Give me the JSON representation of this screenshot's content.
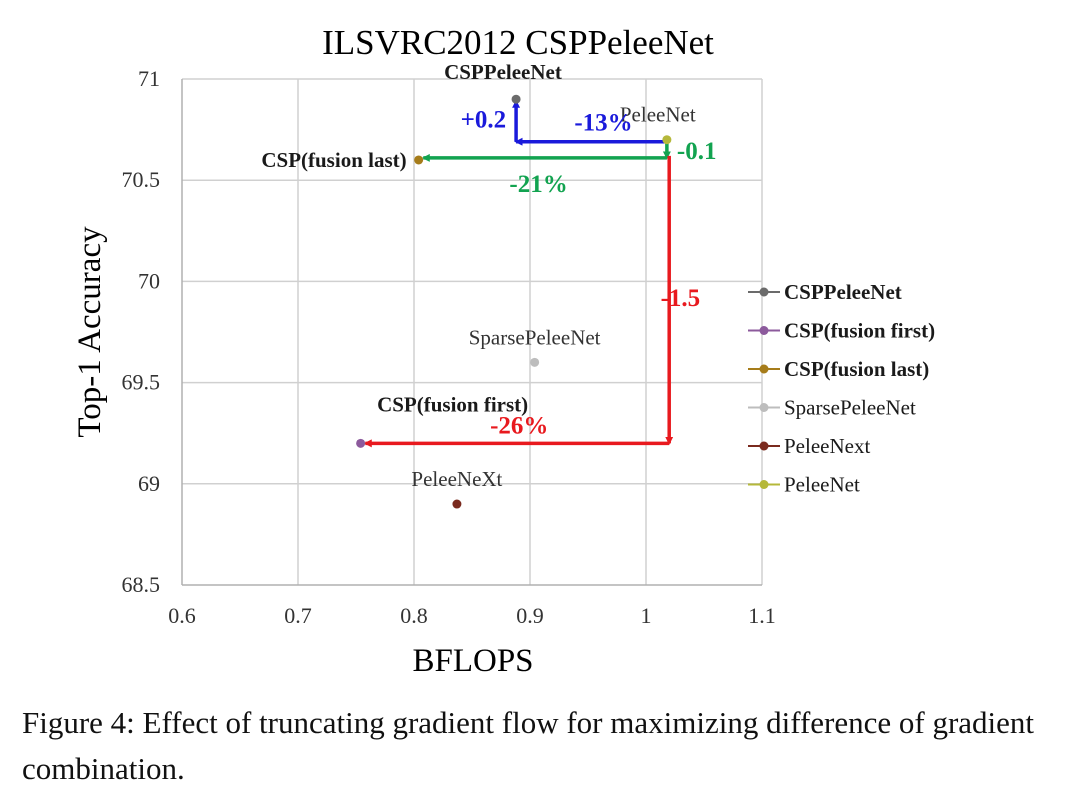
{
  "chart_data": {
    "type": "scatter",
    "title": "ILSVRC2012 CSPPeleeNet",
    "xlabel": "BFLOPS",
    "ylabel": "Top-1 Accuracy",
    "xlim": [
      0.6,
      1.1
    ],
    "ylim": [
      68.5,
      71
    ],
    "xticks": [
      0.6,
      0.7,
      0.8,
      0.9,
      1,
      1.1
    ],
    "xtick_labels": [
      "0.6",
      "0.7",
      "0.8",
      "0.9",
      "1",
      "1.1"
    ],
    "yticks": [
      68.5,
      69,
      69.5,
      70,
      70.5,
      71
    ],
    "ytick_labels": [
      "68.5",
      "69",
      "69.5",
      "70",
      "70.5",
      "71"
    ],
    "grid": true,
    "legend_position": "right",
    "series": [
      {
        "name": "CSPPeleeNet",
        "x": 0.888,
        "y": 70.9,
        "color": "#6b6b6b",
        "bold": true
      },
      {
        "name": "CSP(fusion first)",
        "x": 0.754,
        "y": 69.2,
        "color": "#8c5a9c",
        "bold": true
      },
      {
        "name": "CSP(fusion last)",
        "x": 0.804,
        "y": 70.6,
        "color": "#a67c1a",
        "bold": true
      },
      {
        "name": "SparsePeleeNet",
        "x": 0.904,
        "y": 69.6,
        "color": "#bdbdbd",
        "bold": false
      },
      {
        "name": "PeleeNext",
        "x": 0.837,
        "y": 68.9,
        "color": "#7a2a1e",
        "bold": false
      },
      {
        "name": "PeleeNet",
        "x": 1.018,
        "y": 70.7,
        "color": "#b5b83a",
        "bold": false
      }
    ],
    "point_labels": [
      {
        "text": "CSPPeleeNet",
        "x": 0.888,
        "y": 70.9,
        "bold": true
      },
      {
        "text": "PeleeNet",
        "x": 1.018,
        "y": 70.7,
        "bold": false
      },
      {
        "text": "CSP(fusion last)",
        "x": 0.804,
        "y": 70.6,
        "bold": true
      },
      {
        "text": "SparsePeleeNet",
        "x": 0.904,
        "y": 69.6,
        "bold": false
      },
      {
        "text": "CSP(fusion first)",
        "x": 0.754,
        "y": 69.2,
        "bold": true
      },
      {
        "text": "PeleeNeXt",
        "x": 0.837,
        "y": 68.9,
        "bold": false
      }
    ],
    "annotations": [
      {
        "text": "+0.2",
        "color": "#1a1adb"
      },
      {
        "text": "-13%",
        "color": "#1a1adb"
      },
      {
        "text": "-0.1",
        "color": "#12a350"
      },
      {
        "text": "-21%",
        "color": "#12a350"
      },
      {
        "text": "-1.5",
        "color": "#e8191e"
      },
      {
        "text": "-26%",
        "color": "#e8191e"
      }
    ],
    "arrows": [
      {
        "from": [
          1.018,
          70.69
        ],
        "to": [
          0.888,
          70.69
        ],
        "color": "#1a1adb"
      },
      {
        "from": [
          0.888,
          70.69
        ],
        "to": [
          0.888,
          70.89
        ],
        "color": "#1a1adb"
      },
      {
        "from": [
          1.018,
          70.61
        ],
        "to": [
          0.808,
          70.61
        ],
        "color": "#12a350"
      },
      {
        "from": [
          1.018,
          70.69
        ],
        "to": [
          1.018,
          70.61
        ],
        "color": "#12a350"
      },
      {
        "from": [
          1.02,
          70.62
        ],
        "to": [
          1.02,
          69.2
        ],
        "color": "#e8191e"
      },
      {
        "from": [
          1.02,
          69.2
        ],
        "to": [
          0.758,
          69.2
        ],
        "color": "#e8191e"
      }
    ]
  },
  "caption": "Figure 4: Effect of truncating gradient flow for maximizing difference of gradient combination."
}
